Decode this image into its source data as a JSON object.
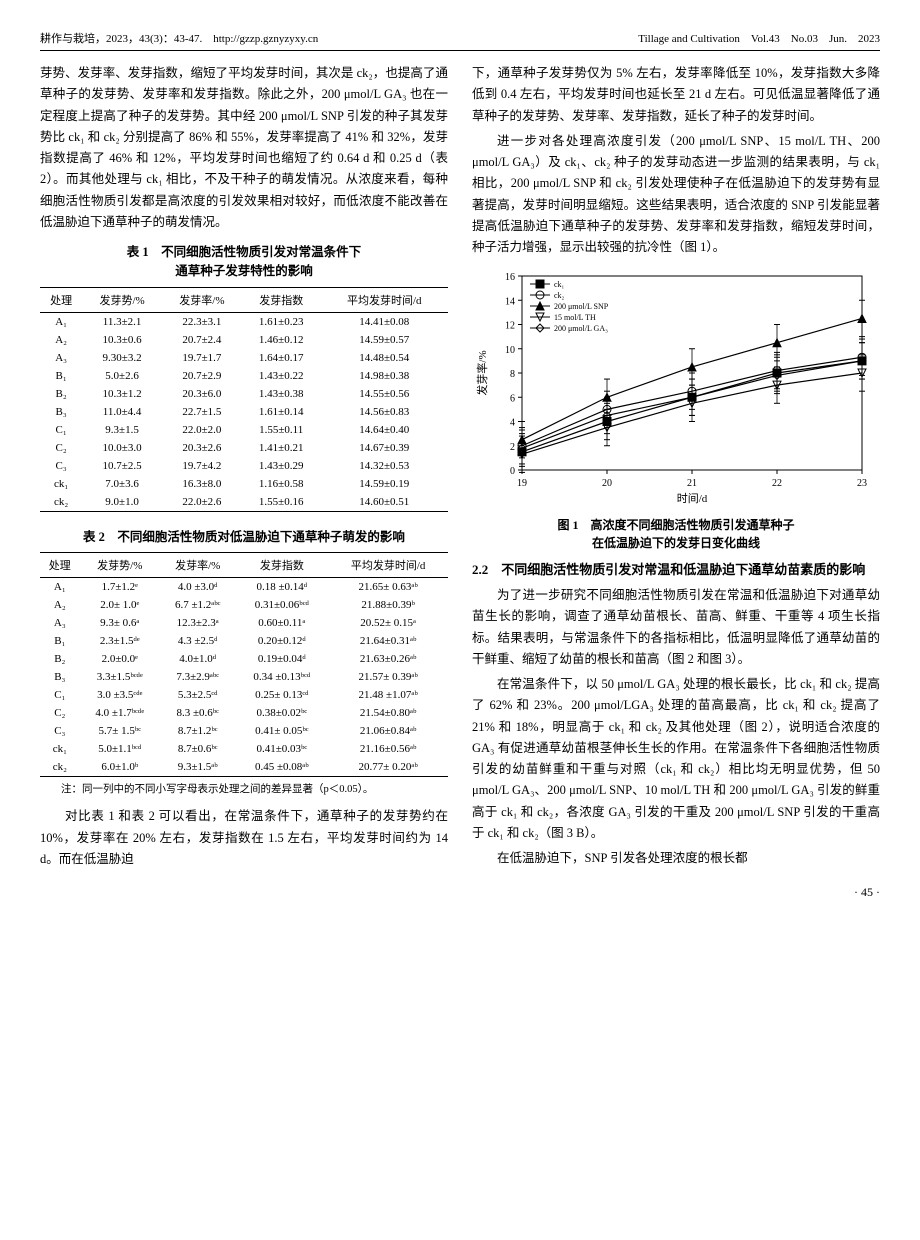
{
  "header": {
    "left": "耕作与栽培，2023，43(3)：43-47.　http://gzzp.gznyzyxy.cn",
    "right": "Tillage and Cultivation　Vol.43　No.03　Jun.　2023"
  },
  "leftCol": {
    "p1": "芽势、发芽率、发芽指数，缩短了平均发芽时间，其次是 ck₂，也提高了通草种子的发芽势、发芽率和发芽指数。除此之外，200 μmol/L GA₃ 也在一定程度上提高了种子的发芽势。其中经 200 μmol/L SNP 引发的种子其发芽势比 ck₁ 和 ck₂ 分别提高了 86% 和 55%，发芽率提高了 41% 和 32%，发芽指数提高了 46% 和 12%，平均发芽时间也缩短了约 0.64 d 和 0.25 d（表 2）。而其他处理与 ck₁ 相比，不及干种子的萌发情况。从浓度来看，每种细胞活性物质引发都是高浓度的引发效果相对较好，而低浓度不能改善在低温胁迫下通草种子的萌发情况。",
    "p2": "对比表 1 和表 2 可以看出，在常温条件下，通草种子的发芽势约在 10%，发芽率在 20% 左右，发芽指数在 1.5 左右，平均发芽时间约为 14 d。而在低温胁迫"
  },
  "table1": {
    "title": "表 1　不同细胞活性物质引发对常温条件下\n通草种子发芽特性的影响",
    "columns": [
      "处理",
      "发芽势/%",
      "发芽率/%",
      "发芽指数",
      "平均发芽时间/d"
    ],
    "rows": [
      [
        "A₁",
        "11.3±2.1",
        "22.3±3.1",
        "1.61±0.23",
        "14.41±0.08"
      ],
      [
        "A₂",
        "10.3±0.6",
        "20.7±2.4",
        "1.46±0.12",
        "14.59±0.57"
      ],
      [
        "A₃",
        "9.30±3.2",
        "19.7±1.7",
        "1.64±0.17",
        "14.48±0.54"
      ],
      [
        "B₁",
        "5.0±2.6",
        "20.7±2.9",
        "1.43±0.22",
        "14.98±0.38"
      ],
      [
        "B₂",
        "10.3±1.2",
        "20.3±6.0",
        "1.43±0.38",
        "14.55±0.56"
      ],
      [
        "B₃",
        "11.0±4.4",
        "22.7±1.5",
        "1.61±0.14",
        "14.56±0.83"
      ],
      [
        "C₁",
        "9.3±1.5",
        "22.0±2.0",
        "1.55±0.11",
        "14.64±0.40"
      ],
      [
        "C₂",
        "10.0±3.0",
        "20.3±2.6",
        "1.41±0.21",
        "14.67±0.39"
      ],
      [
        "C₃",
        "10.7±2.5",
        "19.7±4.2",
        "1.43±0.29",
        "14.32±0.53"
      ],
      [
        "ck₁",
        "7.0±3.6",
        "16.3±8.0",
        "1.16±0.58",
        "14.59±0.19"
      ],
      [
        "ck₂",
        "9.0±1.0",
        "22.0±2.6",
        "1.55±0.16",
        "14.60±0.51"
      ]
    ]
  },
  "table2": {
    "title": "表 2　不同细胞活性物质对低温胁迫下通草种子萌发的影响",
    "columns": [
      "处理",
      "发芽势/%",
      "发芽率/%",
      "发芽指数",
      "平均发芽时间/d"
    ],
    "rows": [
      [
        "A₁",
        "1.7±1.2ᵉ",
        "4.0 ±3.0ᵈ",
        "0.18 ±0.14ᵈ",
        "21.65± 0.63ᵃᵇ"
      ],
      [
        "A₂",
        "2.0± 1.0ᵉ",
        "6.7 ±1.2ᵃᵇᶜ",
        "0.31±0.06ᵇᶜᵈ",
        "21.88±0.39ᵇ"
      ],
      [
        "A₃",
        "9.3± 0.6ᵃ",
        "12.3±2.3ᵃ",
        "0.60±0.11ᵃ",
        "20.52± 0.15ᵃ"
      ],
      [
        "B₁",
        "2.3±1.5ᵈᵉ",
        "4.3 ±2.5ᵈ",
        "0.20±0.12ᵈ",
        "21.64±0.31ᵃᵇ"
      ],
      [
        "B₂",
        "2.0±0.0ᵉ",
        "4.0±1.0ᵈ",
        "0.19±0.04ᵈ",
        "21.63±0.26ᵃᵇ"
      ],
      [
        "B₃",
        "3.3±1.5ᵇᶜᵈᵉ",
        "7.3±2.9ᵃᵇᶜ",
        "0.34 ±0.13ᵇᶜᵈ",
        "21.57± 0.39ᵃᵇ"
      ],
      [
        "C₁",
        "3.0 ±3.5ᶜᵈᵉ",
        "5.3±2.5ᶜᵈ",
        "0.25± 0.13ᶜᵈ",
        "21.48 ±1.07ᵃᵇ"
      ],
      [
        "C₂",
        "4.0 ±1.7ᵇᶜᵈᵉ",
        "8.3 ±0.6ᵇᶜ",
        "0.38±0.02ᵇᶜ",
        "21.54±0.80ᵃᵇ"
      ],
      [
        "C₃",
        "5.7± 1.5ᵇᶜ",
        "8.7±1.2ᵇᶜ",
        "0.41± 0.05ᵇᶜ",
        "21.06±0.84ᵃᵇ"
      ],
      [
        "ck₁",
        "5.0±1.1ᵇᶜᵈ",
        "8.7±0.6ᵇᶜ",
        "0.41±0.03ᵇᶜ",
        "21.16±0.56ᵃᵇ"
      ],
      [
        "ck₂",
        "6.0±1.0ᵇ",
        "9.3±1.5ᵃᵇ",
        "0.45 ±0.08ᵃᵇ",
        "20.77± 0.20ᵃᵇ"
      ]
    ],
    "note": "注：同一列中的不同小写字母表示处理之间的差异显著（p＜0.05）。"
  },
  "rightCol": {
    "p1": "下，通草种子发芽势仅为 5% 左右，发芽率降低至 10%，发芽指数大多降低到 0.4 左右，平均发芽时间也延长至 21 d 左右。可见低温显著降低了通草种子的发芽势、发芽率、发芽指数，延长了种子的发芽时间。",
    "p2": "进一步对各处理高浓度引发（200 μmol/L SNP、15 mol/L TH、200 μmol/L GA₃）及 ck₁、ck₂ 种子的发芽动态进一步监测的结果表明，与 ck₁ 相比，200 μmol/L SNP 和 ck₂ 引发处理使种子在低温胁迫下的发芽势有显著提高，发芽时间明显缩短。这些结果表明，适合浓度的 SNP 引发能显著提高低温胁迫下通草种子的发芽势、发芽率和发芽指数，缩短发芽时间，种子活力增强，显示出较强的抗冷性（图 1）。",
    "sec22": "2.2　不同细胞活性物质引发对常温和低温胁迫下通草幼苗素质的影响",
    "p3": "为了进一步研究不同细胞活性物质引发在常温和低温胁迫下对通草幼苗生长的影响，调查了通草幼苗根长、苗高、鲜重、干重等 4 项生长指标。结果表明，与常温条件下的各指标相比，低温明显降低了通草幼苗的干鲜重、缩短了幼苗的根长和苗高（图 2 和图 3）。",
    "p4": "在常温条件下，以 50 μmol/L GA₃ 处理的根长最长，比 ck₁ 和 ck₂ 提高了 62% 和 23%。200 μmol/LGA₃ 处理的苗高最高，比 ck₁ 和 ck₂ 提高了 21% 和 18%，明显高于 ck₁ 和 ck₂ 及其他处理（图 2），说明适合浓度的 GA₃ 有促进通草幼苗根茎伸长生长的作用。在常温条件下各细胞活性物质引发的幼苗鲜重和干重与对照（ck₁ 和 ck₂）相比均无明显优势，但 50 μmol/L GA₃、200 μmol/L SNP、10 mol/L TH 和 200 μmol/L GA₃ 引发的鲜重高于 ck₁ 和 ck₂，各浓度 GA₃ 引发的干重及 200 μmol/L SNP 引发的干重高于 ck₁ 和 ck₂（图 3 B）。",
    "p5": "在低温胁迫下，SNP 引发各处理浓度的根长都"
  },
  "chart": {
    "type": "line",
    "caption": "图 1　高浓度不同细胞活性物质引发通草种子\n在低温胁迫下的发芽日变化曲线",
    "xlabel": "时间/d",
    "ylabel": "发芽率/%",
    "xlim": [
      19,
      23
    ],
    "ylim": [
      0,
      16
    ],
    "xtick_step": 1,
    "ytick_step": 2,
    "background_color": "#ffffff",
    "grid": false,
    "axis_color": "#000000",
    "legend_position": "top-left-inside",
    "legend_fontsize": 8,
    "series": [
      {
        "name": "ck₁",
        "marker": "square-filled",
        "color": "#000000",
        "values": {
          "19": 1.5,
          "20": 4.0,
          "21": 6.0,
          "22": 8.0,
          "23": 9.0
        }
      },
      {
        "name": "ck₂",
        "marker": "circle-open",
        "color": "#000000",
        "values": {
          "19": 2.0,
          "20": 5.0,
          "21": 6.5,
          "22": 8.2,
          "23": 9.3
        }
      },
      {
        "name": "200 μmol/L SNP",
        "marker": "triangle-filled",
        "color": "#000000",
        "values": {
          "19": 2.5,
          "20": 6.0,
          "21": 8.5,
          "22": 10.5,
          "23": 12.5
        }
      },
      {
        "name": "15 mol/L TH",
        "marker": "triangle-down-open",
        "color": "#000000",
        "values": {
          "19": 1.3,
          "20": 3.5,
          "21": 5.5,
          "22": 7.0,
          "23": 8.0
        }
      },
      {
        "name": "200 μmol/L GA₃",
        "marker": "diamond-open",
        "color": "#000000",
        "values": {
          "19": 1.8,
          "20": 4.5,
          "21": 6.0,
          "22": 7.8,
          "23": 9.0
        }
      }
    ],
    "error_bar_approx": 1.5
  },
  "pagenum": "· 45 ·"
}
